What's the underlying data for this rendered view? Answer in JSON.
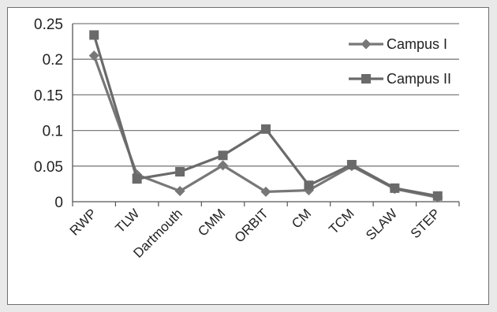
{
  "chart_data": {
    "type": "line",
    "categories": [
      "RWP",
      "TLW",
      "Dartmouth",
      "CMM",
      "ORBIT",
      "CM",
      "TCM",
      "SLAW",
      "STEP"
    ],
    "series": [
      {
        "name": "Campus I",
        "marker": "diamond",
        "color": "#777777",
        "values": [
          0.205,
          0.038,
          0.015,
          0.051,
          0.014,
          0.016,
          0.05,
          0.018,
          0.006
        ]
      },
      {
        "name": "Campus II",
        "marker": "square",
        "color": "#6a6a6a",
        "values": [
          0.234,
          0.032,
          0.042,
          0.065,
          0.102,
          0.023,
          0.052,
          0.019,
          0.008
        ]
      }
    ],
    "y_ticks": [
      "0",
      "0.05",
      "0.1",
      "0.15",
      "0.2",
      "0.25"
    ],
    "ylim": [
      0,
      0.25
    ],
    "grid": true,
    "legend_position": "top-right",
    "title": "",
    "xlabel": "",
    "ylabel": ""
  }
}
